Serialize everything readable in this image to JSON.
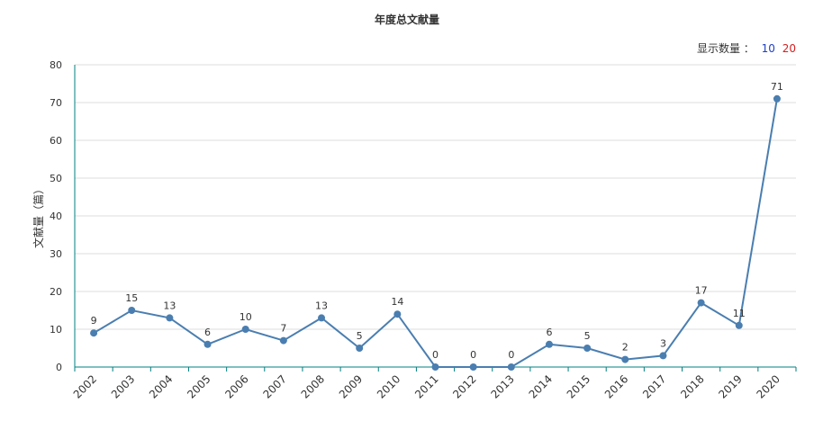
{
  "chart_data": {
    "type": "line",
    "title": "年度总文献量",
    "ylabel": "文献量（篇）",
    "xlabel": "",
    "ylim": [
      0,
      80
    ],
    "yticks": [
      0,
      10,
      20,
      30,
      40,
      50,
      60,
      70,
      80
    ],
    "grid": true,
    "categories": [
      "2002",
      "2003",
      "2004",
      "2005",
      "2006",
      "2007",
      "2008",
      "2009",
      "2010",
      "2011",
      "2012",
      "2013",
      "2014",
      "2015",
      "2016",
      "2017",
      "2018",
      "2019",
      "2020"
    ],
    "series": [
      {
        "values": [
          9,
          15,
          13,
          6,
          10,
          7,
          13,
          5,
          14,
          0,
          0,
          0,
          6,
          5,
          2,
          3,
          17,
          11,
          71
        ],
        "color": "#4a7eb0"
      }
    ]
  },
  "controls": {
    "display_label": "显示数量 ：",
    "options": [
      "10",
      "20"
    ],
    "option_colors": [
      "#1f3fbf",
      "#d62020"
    ]
  },
  "colors": {
    "axis": "#008080",
    "grid": "#dddddd",
    "line": "#4a7eb0"
  }
}
